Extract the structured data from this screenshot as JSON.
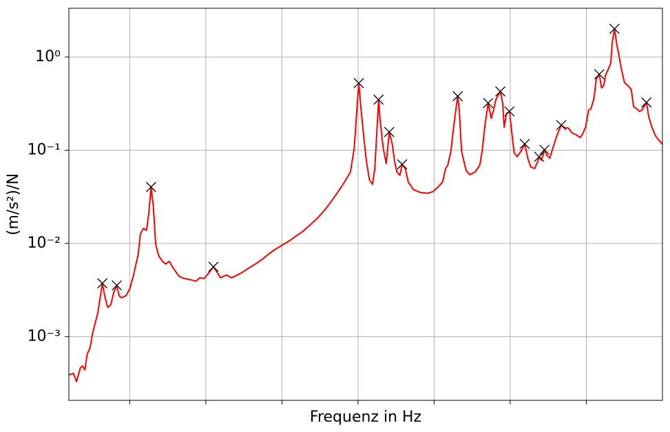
{
  "chart_data": {
    "type": "line",
    "xlabel": "Frequenz in Hz",
    "ylabel": "(m/s²)/N",
    "xlim": [
      0.2,
      8.0
    ],
    "xticks": [
      1,
      2,
      3,
      4,
      5,
      6,
      7
    ],
    "ylim": [
      0.000207,
      3.34
    ],
    "ylog": true,
    "yticks": [
      {
        "value": 0.001,
        "label": "10⁻³"
      },
      {
        "value": 0.01,
        "label": "10⁻²"
      },
      {
        "value": 0.1,
        "label": "10⁻¹"
      },
      {
        "value": 1,
        "label": "10⁰"
      }
    ],
    "grid": true,
    "series": [
      {
        "color": "#ff0000",
        "x": [
          0.2,
          0.26,
          0.3,
          0.35,
          0.38,
          0.41,
          0.44,
          0.48,
          0.51,
          0.55,
          0.58,
          0.64,
          0.67,
          0.71,
          0.75,
          0.79,
          0.83,
          0.86,
          0.89,
          0.95,
          1.0,
          1.05,
          1.11,
          1.14,
          1.18,
          1.22,
          1.25,
          1.28,
          1.31,
          1.34,
          1.38,
          1.43,
          1.47,
          1.52,
          1.56,
          1.61,
          1.65,
          1.71,
          1.81,
          1.87,
          1.92,
          1.98,
          2.03,
          2.1,
          2.16,
          2.19,
          2.27,
          2.34,
          2.41,
          2.48,
          2.56,
          2.65,
          2.74,
          2.83,
          2.92,
          3.01,
          3.1,
          3.19,
          3.28,
          3.37,
          3.46,
          3.55,
          3.64,
          3.73,
          3.82,
          3.9,
          3.95,
          3.99,
          4.01,
          4.04,
          4.08,
          4.11,
          4.15,
          4.19,
          4.22,
          4.25,
          4.27,
          4.29,
          4.33,
          4.37,
          4.39,
          4.41,
          4.45,
          4.48,
          4.51,
          4.55,
          4.58,
          4.62,
          4.66,
          4.73,
          4.82,
          4.91,
          4.98,
          5.05,
          5.11,
          5.15,
          5.18,
          5.22,
          5.25,
          5.29,
          5.31,
          5.33,
          5.36,
          5.42,
          5.47,
          5.54,
          5.6,
          5.63,
          5.67,
          5.71,
          5.75,
          5.78,
          5.81,
          5.87,
          5.9,
          5.92,
          5.95,
          5.99,
          6.01,
          6.05,
          6.09,
          6.14,
          6.19,
          6.23,
          6.27,
          6.32,
          6.36,
          6.38,
          6.41,
          6.45,
          6.48,
          6.52,
          6.56,
          6.61,
          6.67,
          6.72,
          6.76,
          6.81,
          6.86,
          6.92,
          6.95,
          6.99,
          7.03,
          7.06,
          7.1,
          7.13,
          7.17,
          7.2,
          7.23,
          7.25,
          7.29,
          7.32,
          7.34,
          7.37,
          7.4,
          7.43,
          7.46,
          7.5,
          7.55,
          7.59,
          7.62,
          7.66,
          7.7,
          7.73,
          7.79,
          7.82,
          7.86,
          7.91,
          7.96,
          8.0
        ],
        "values": [
          0.000389,
          0.000403,
          0.000329,
          0.000461,
          0.000485,
          0.000439,
          0.000648,
          0.000769,
          0.00108,
          0.00144,
          0.0018,
          0.00373,
          0.00275,
          0.00206,
          0.0022,
          0.00299,
          0.00355,
          0.00275,
          0.00261,
          0.00275,
          0.00326,
          0.00458,
          0.00762,
          0.0127,
          0.0145,
          0.0138,
          0.0211,
          0.0403,
          0.025,
          0.00984,
          0.00736,
          0.00643,
          0.00601,
          0.00643,
          0.00561,
          0.0049,
          0.00443,
          0.00421,
          0.00406,
          0.00393,
          0.00428,
          0.00421,
          0.00473,
          0.00561,
          0.00473,
          0.00428,
          0.00458,
          0.00428,
          0.00458,
          0.0049,
          0.00542,
          0.00601,
          0.00676,
          0.00775,
          0.00873,
          0.00966,
          0.0107,
          0.0121,
          0.0136,
          0.0158,
          0.0185,
          0.0222,
          0.0277,
          0.0352,
          0.0454,
          0.0586,
          0.106,
          0.321,
          0.525,
          0.27,
          0.126,
          0.0755,
          0.0478,
          0.0431,
          0.0637,
          0.177,
          0.349,
          0.21,
          0.106,
          0.0718,
          0.106,
          0.157,
          0.116,
          0.0755,
          0.0586,
          0.0538,
          0.0706,
          0.0637,
          0.0454,
          0.0377,
          0.0352,
          0.0346,
          0.0358,
          0.0403,
          0.0454,
          0.0637,
          0.0694,
          0.0975,
          0.162,
          0.294,
          0.38,
          0.27,
          0.0975,
          0.0605,
          0.0547,
          0.0586,
          0.0694,
          0.0975,
          0.192,
          0.321,
          0.22,
          0.27,
          0.349,
          0.428,
          0.321,
          0.177,
          0.248,
          0.261,
          0.186,
          0.0942,
          0.0851,
          0.0975,
          0.117,
          0.0822,
          0.0659,
          0.0637,
          0.0755,
          0.0851,
          0.0782,
          0.101,
          0.0881,
          0.0822,
          0.106,
          0.142,
          0.186,
          0.174,
          0.174,
          0.154,
          0.147,
          0.137,
          0.149,
          0.177,
          0.27,
          0.279,
          0.361,
          0.581,
          0.654,
          0.466,
          0.498,
          0.632,
          0.749,
          0.859,
          1.43,
          2.01,
          1.36,
          1.02,
          0.749,
          0.533,
          0.49,
          0.45,
          0.294,
          0.279,
          0.261,
          0.27,
          0.326,
          0.228,
          0.177,
          0.142,
          0.126,
          0.116
        ]
      },
      {
        "color": "#000000",
        "marker": "x",
        "x": [
          0.64,
          0.83,
          1.28,
          2.1,
          4.01,
          4.27,
          4.41,
          4.58,
          5.31,
          5.71,
          5.87,
          5.99,
          6.19,
          6.38,
          6.45,
          6.67,
          7.17,
          7.37,
          7.79
        ],
        "values": [
          0.00373,
          0.00355,
          0.0403,
          0.00561,
          0.525,
          0.349,
          0.157,
          0.0706,
          0.38,
          0.321,
          0.428,
          0.261,
          0.117,
          0.0851,
          0.101,
          0.186,
          0.654,
          2.01,
          0.326
        ]
      }
    ]
  }
}
